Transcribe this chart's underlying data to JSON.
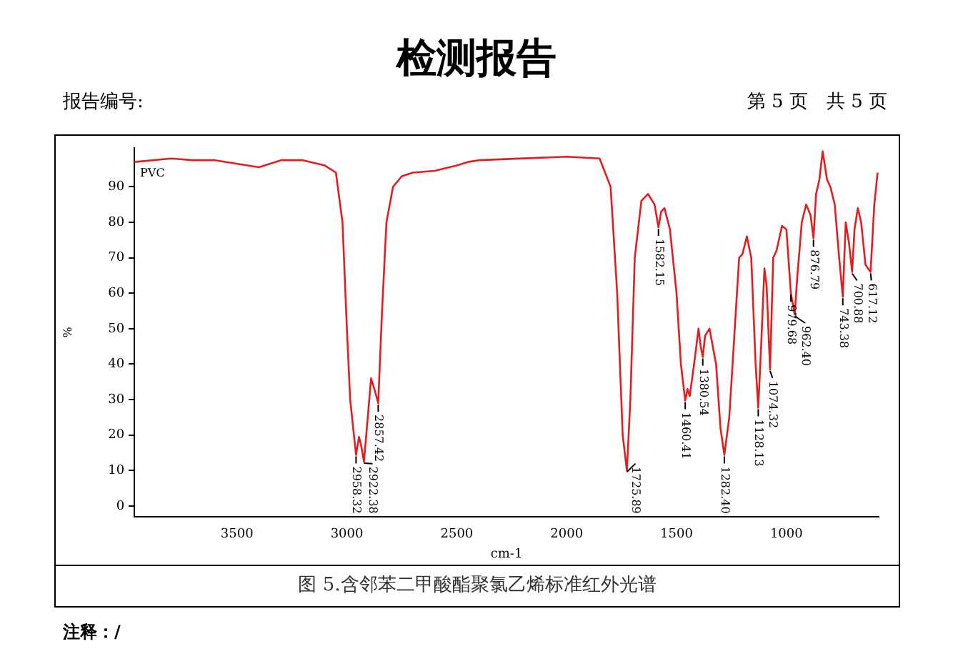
{
  "chart_data": {
    "type": "line",
    "title": "检测报告",
    "xlabel": "cm-1",
    "ylabel": "%",
    "annotations": [
      "报告编号:",
      "第 5 页　共 5 页",
      "图 5.含邻苯二甲酸酯聚氯乙烯标准红外光谱",
      "注释：/",
      "PVC",
      {
        "text": "2958.32",
        "x": 2958.32,
        "y": 14.4
      },
      {
        "text": "2922.38",
        "x": 2922.38,
        "y": 12.5
      },
      {
        "text": "2857.42",
        "x": 2857.42,
        "y": 29
      },
      {
        "text": "1725.89",
        "x": 1725.89,
        "y": 10
      },
      {
        "text": "1582.15",
        "x": 1582.15,
        "y": 78.6
      },
      {
        "text": "1460.41",
        "x": 1460.41,
        "y": 29.7
      },
      {
        "text": "1380.54",
        "x": 1380.54,
        "y": 42
      },
      {
        "text": "1282.40",
        "x": 1282.4,
        "y": 14.4
      },
      {
        "text": "1128.13",
        "x": 1128.13,
        "y": 27.7
      },
      {
        "text": "1074.32",
        "x": 1074.32,
        "y": 38.5
      },
      {
        "text": "979.68",
        "x": 979.68,
        "y": 60
      },
      {
        "text": "962.40",
        "x": 962.4,
        "y": 54
      },
      {
        "text": "876.79",
        "x": 876.79,
        "y": 75.5
      },
      {
        "text": "743.38",
        "x": 743.38,
        "y": 59
      },
      {
        "text": "700.88",
        "x": 700.88,
        "y": 66
      },
      {
        "text": "617.12",
        "x": 617.12,
        "y": 66
      }
    ],
    "x": [
      3967,
      3800,
      3700,
      3600,
      3400,
      3300,
      3200,
      3100,
      3050,
      3020,
      3000,
      2985,
      2958.32,
      2945,
      2935,
      2922.38,
      2905,
      2890,
      2875,
      2857.42,
      2840,
      2820,
      2790,
      2750,
      2700,
      2600,
      2500,
      2450,
      2400,
      2000,
      1850,
      1800,
      1770,
      1745,
      1725.89,
      1710,
      1690,
      1660,
      1630,
      1600,
      1582.15,
      1570,
      1555,
      1530,
      1500,
      1480,
      1460.41,
      1450,
      1440,
      1420,
      1400,
      1390,
      1380.54,
      1370,
      1350,
      1320,
      1300,
      1282.4,
      1260,
      1230,
      1215,
      1200,
      1180,
      1160,
      1140,
      1128.13,
      1115,
      1100,
      1090,
      1074.32,
      1060,
      1045,
      1020,
      1000,
      979.68,
      962.4,
      950,
      930,
      910,
      890,
      876.79,
      865,
      850,
      835,
      815,
      800,
      780,
      760,
      743.38,
      730,
      715,
      700.88,
      690,
      675,
      660,
      640,
      617.12,
      600,
      585
    ],
    "series": [
      {
        "color": "#e02020",
        "values": [
          97,
          98,
          97.5,
          97.5,
          95.5,
          97.5,
          97.5,
          96,
          94,
          80,
          50,
          30,
          14.4,
          19.5,
          17,
          12.5,
          25,
          36,
          33,
          29,
          55,
          80,
          90,
          93,
          94,
          94.5,
          96,
          97,
          97.5,
          98.5,
          98,
          90,
          60,
          20,
          10,
          30,
          70,
          86,
          88,
          85,
          78.6,
          83,
          84,
          78,
          60,
          40,
          29.7,
          33,
          31,
          40,
          50,
          45,
          42,
          48,
          50,
          40,
          22,
          14.4,
          25,
          55,
          70,
          71,
          76,
          70,
          40,
          27.7,
          45,
          67,
          62,
          38.5,
          70,
          72,
          79,
          78,
          60,
          54,
          65,
          80,
          85,
          82,
          75.5,
          88,
          92,
          100,
          92,
          90,
          85,
          70,
          59,
          80,
          74,
          66,
          78,
          84,
          80,
          68,
          66,
          85,
          94
        ]
      }
    ],
    "xlim": [
      3967,
      580
    ],
    "xticks": [
      3500,
      3000,
      2500,
      2000,
      1500,
      1000
    ],
    "ylim": [
      -3,
      101
    ],
    "yticks": [
      0,
      10,
      20,
      30,
      40,
      50,
      60,
      70,
      80,
      90
    ],
    "grid": false,
    "legend": false,
    "marker": "none",
    "line_style": "solid"
  }
}
